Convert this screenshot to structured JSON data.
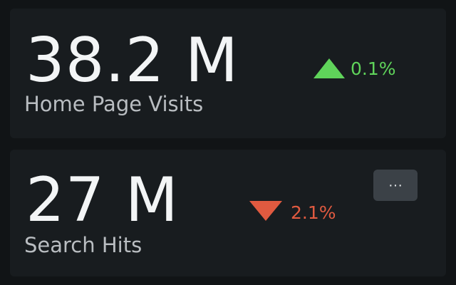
{
  "colors": {
    "up": "#5fd35a",
    "down": "#e05a40",
    "value_text": "#f3f5f6",
    "label_text": "#b9bdc1",
    "card_bg": "#181c1f",
    "page_bg": "#111416"
  },
  "cards": [
    {
      "value": "38.2 M",
      "trend": "up",
      "trend_icon": "triangle-up-icon",
      "delta": "0.1%",
      "label": "Home Page Visits"
    },
    {
      "value": "27 M",
      "trend": "down",
      "trend_icon": "triangle-down-icon",
      "delta": "2.1%",
      "label": "Search Hits",
      "menu_button": {
        "label": "···",
        "icon": "more-horizontal-icon"
      }
    }
  ]
}
